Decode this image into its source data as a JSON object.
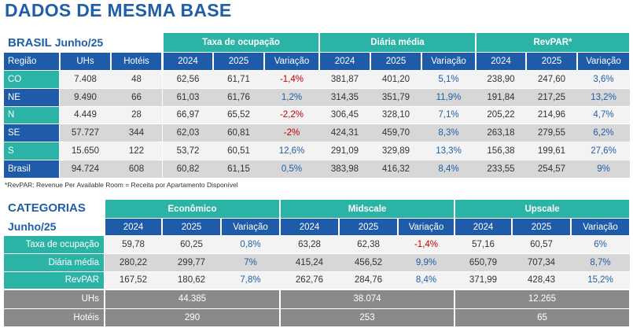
{
  "title": "DADOS DE MESMA BASE",
  "brasil": {
    "label": "BRASIL",
    "period": "Junho/25",
    "groups": [
      "Taxa de ocupação",
      "Diária média",
      "RevPAR*"
    ],
    "columns": [
      "Região",
      "UHs",
      "Hotéis",
      "2024",
      "2025",
      "Variação",
      "2024",
      "2025",
      "Variação",
      "2024",
      "2025",
      "Variação"
    ],
    "rows": [
      [
        "CO",
        "7.408",
        "48",
        "62,56",
        "61,71",
        "-1,4%",
        "381,87",
        "401,20",
        "5,1%",
        "238,90",
        "247,60",
        "3,6%"
      ],
      [
        "NE",
        "9.490",
        "66",
        "61,03",
        "61,76",
        "1,2%",
        "314,35",
        "351,79",
        "11,9%",
        "191,84",
        "217,25",
        "13,2%"
      ],
      [
        "N",
        "4.449",
        "28",
        "66,97",
        "65,52",
        "-2,2%",
        "306,45",
        "328,10",
        "7,1%",
        "205,22",
        "214,96",
        "4,7%"
      ],
      [
        "SE",
        "57.727",
        "344",
        "62,03",
        "60,81",
        "-2%",
        "424,31",
        "459,70",
        "8,3%",
        "263,18",
        "279,55",
        "6,2%"
      ],
      [
        "S",
        "15.650",
        "122",
        "53,72",
        "60,51",
        "12,6%",
        "291,09",
        "329,89",
        "13,3%",
        "156,38",
        "199,61",
        "27,6%"
      ],
      [
        "Brasil",
        "94.724",
        "608",
        "60,82",
        "61,15",
        "0,5%",
        "383,98",
        "416,32",
        "8,4%",
        "233,55",
        "254,57",
        "9%"
      ]
    ],
    "footnote": "*RevPAR: Revenue Per Available Room = Receita por Apartamento Disponível"
  },
  "categorias": {
    "label": "CATEGORIAS",
    "period": "Junho/25",
    "groups": [
      "Econômico",
      "Midscale",
      "Upscale"
    ],
    "columns": [
      "2024",
      "2025",
      "Variação",
      "2024",
      "2025",
      "Variação",
      "2024",
      "2025",
      "Variação"
    ],
    "rows": [
      [
        "Taxa de ocupação",
        "59,78",
        "60,25",
        "0,8%",
        "63,28",
        "62,38",
        "-1,4%",
        "57,16",
        "60,57",
        "6%"
      ],
      [
        "Diária média",
        "280,22",
        "299,77",
        "7%",
        "415,24",
        "456,52",
        "9,9%",
        "650,79",
        "707,34",
        "8,7%"
      ],
      [
        "RevPAR",
        "167,52",
        "180,62",
        "7,8%",
        "262,76",
        "284,76",
        "8,4%",
        "371,99",
        "428,43",
        "15,2%"
      ]
    ],
    "totals": [
      [
        "UHs",
        "44.385",
        "38.074",
        "12.265"
      ],
      [
        "Hotéis",
        "290",
        "253",
        "65"
      ]
    ]
  }
}
